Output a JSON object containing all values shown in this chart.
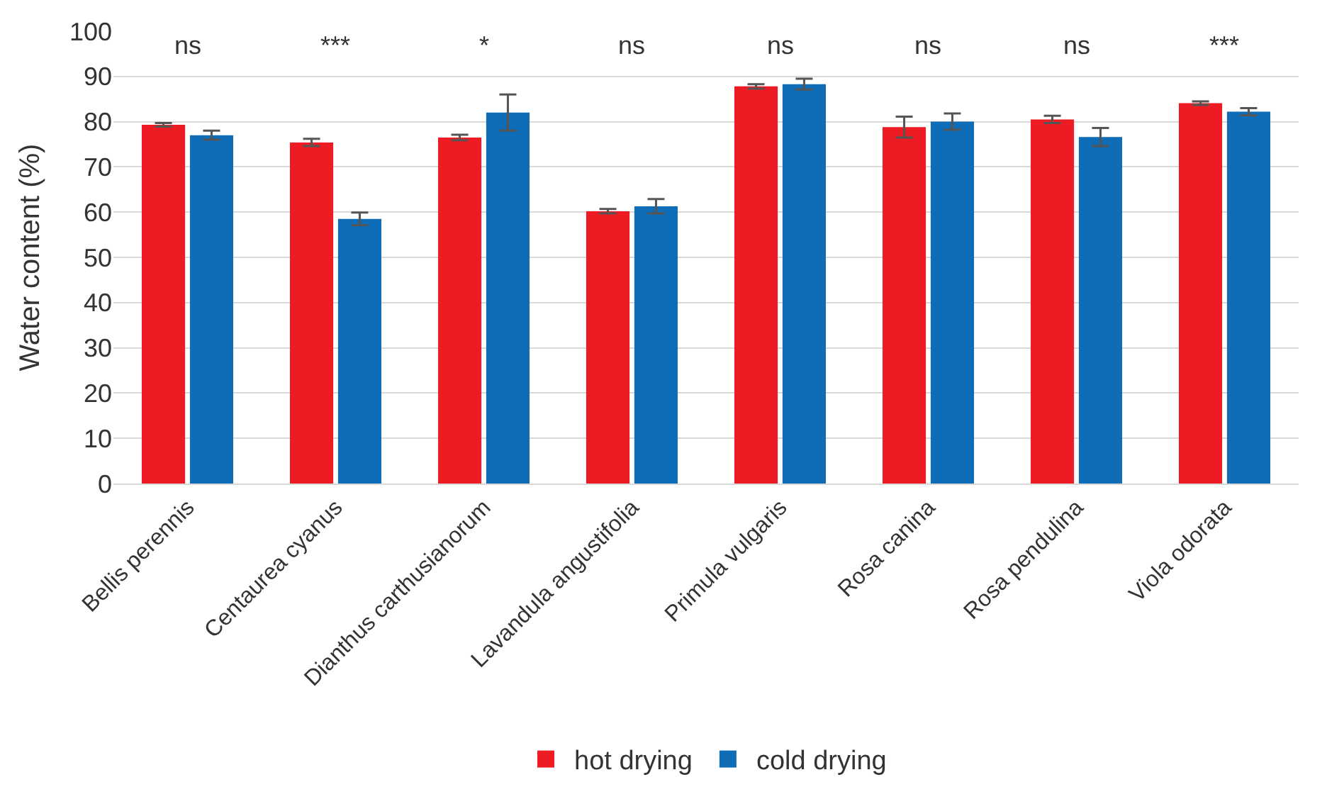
{
  "chart_data": {
    "type": "bar",
    "ylabel": "Water content (%)",
    "categories": [
      "Bellis perennis",
      "Centaurea cyanus",
      "Dianthus carthusianorum",
      "Lavandula angustifolia",
      "Primula vulgaris",
      "Rosa canina",
      "Rosa pendulina",
      "Viola odorata"
    ],
    "series": [
      {
        "name": "hot drying",
        "color": "#ed1c24",
        "values": [
          79.3,
          75.4,
          76.5,
          60.2,
          87.8,
          78.8,
          80.5,
          84.1
        ],
        "errors": [
          0.4,
          0.8,
          0.6,
          0.5,
          0.5,
          2.3,
          0.8,
          0.4
        ]
      },
      {
        "name": "cold drying",
        "color": "#0f6db8",
        "values": [
          77.0,
          58.5,
          82.0,
          61.3,
          88.3,
          80.0,
          76.6,
          82.2
        ],
        "errors": [
          1.0,
          1.4,
          4.0,
          1.6,
          1.2,
          1.8,
          2.0,
          0.8
        ]
      }
    ],
    "ylim": [
      0,
      100
    ],
    "yticks": [
      0,
      10,
      20,
      30,
      40,
      50,
      60,
      70,
      80,
      90,
      100
    ],
    "grid": "y",
    "legend": "bottom",
    "annotations": [
      "ns",
      "***",
      "*",
      "ns",
      "ns",
      "ns",
      "ns",
      "***"
    ]
  }
}
